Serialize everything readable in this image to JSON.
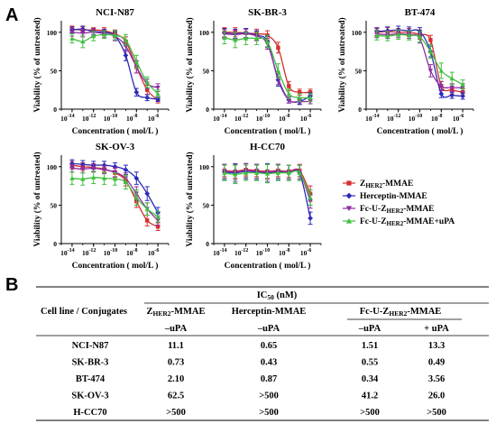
{
  "panels": {
    "a": "A",
    "b": "B"
  },
  "colors": {
    "zher2": "#d62f2f",
    "herceptin": "#2a2ab8",
    "fcu": "#8e2da0",
    "fcu_upa": "#3fbf3f"
  },
  "legend": [
    {
      "prefix": "Z",
      "sub": "HER2",
      "suffix": "-MMAE",
      "color": "#d62f2f",
      "marker": "square"
    },
    {
      "prefix": "Herceptin-MMAE",
      "sub": "",
      "suffix": "",
      "color": "#2a2ab8",
      "marker": "diamond"
    },
    {
      "prefix": "Fc-U-Z",
      "sub": "HER2",
      "suffix": "-MMAE",
      "color": "#8e2da0",
      "marker": "triangle-down"
    },
    {
      "prefix": "Fc-U-Z",
      "sub": "HER2",
      "suffix": "-MMAE+uPA",
      "color": "#3fbf3f",
      "marker": "triangle-up"
    }
  ],
  "chart_data": [
    {
      "type": "line",
      "title": "NCI-N87",
      "xlabel": "Concentration ( mol/L )",
      "ylabel": "Viability (% of untreated)",
      "x_scale": "log",
      "xlim": [
        1e-15,
        1e-05
      ],
      "ylim": [
        0,
        115
      ],
      "x_ticks": [
        -14,
        -12,
        -10,
        -8,
        -6
      ],
      "y_ticks": [
        0,
        50,
        100
      ],
      "x": [
        1e-14,
        1e-13,
        1e-12,
        1e-11,
        1e-10,
        1e-09,
        1e-08,
        1e-07,
        1e-06
      ],
      "series": [
        {
          "name": "ZHER2-MMAE",
          "values": [
            104,
            103,
            103,
            102,
            98,
            88,
            55,
            25,
            12
          ],
          "errors": [
            4,
            4,
            3,
            4,
            5,
            6,
            8,
            6,
            4
          ]
        },
        {
          "name": "Herceptin-MMAE",
          "values": [
            103,
            104,
            101,
            100,
            95,
            70,
            22,
            15,
            13
          ],
          "errors": [
            4,
            4,
            4,
            4,
            5,
            7,
            5,
            4,
            3
          ]
        },
        {
          "name": "Fc-U-ZHER2-MMAE",
          "values": [
            100,
            99,
            100,
            98,
            95,
            82,
            55,
            33,
            28
          ],
          "errors": [
            5,
            5,
            5,
            5,
            6,
            7,
            8,
            6,
            5
          ]
        },
        {
          "name": "Fc-U-ZHER2-MMAE+uPA",
          "values": [
            92,
            88,
            95,
            97,
            96,
            90,
            62,
            35,
            20
          ],
          "errors": [
            6,
            8,
            6,
            5,
            6,
            7,
            8,
            7,
            5
          ]
        }
      ]
    },
    {
      "type": "line",
      "title": "SK-BR-3",
      "xlabel": "Concentration ( mol/L )",
      "ylabel": "Viability (% of untreated)",
      "x_scale": "log",
      "xlim": [
        1e-15,
        1e-05
      ],
      "ylim": [
        0,
        115
      ],
      "x_ticks": [
        -14,
        -12,
        -10,
        -8,
        -6
      ],
      "y_ticks": [
        0,
        50,
        100
      ],
      "x": [
        1e-14,
        1e-13,
        1e-12,
        1e-11,
        1e-10,
        1e-09,
        1e-08,
        1e-07,
        1e-06
      ],
      "series": [
        {
          "name": "ZHER2-MMAE",
          "values": [
            100,
            100,
            99,
            98,
            96,
            80,
            30,
            22,
            22
          ],
          "errors": [
            6,
            6,
            6,
            6,
            6,
            7,
            6,
            4,
            4
          ]
        },
        {
          "name": "Herceptin-MMAE",
          "values": [
            99,
            98,
            99,
            96,
            88,
            38,
            12,
            10,
            17
          ],
          "errors": [
            6,
            6,
            6,
            6,
            7,
            8,
            4,
            4,
            4
          ]
        },
        {
          "name": "Fc-U-ZHER2-MMAE",
          "values": [
            98,
            97,
            98,
            95,
            85,
            40,
            12,
            10,
            10
          ],
          "errors": [
            6,
            6,
            6,
            6,
            7,
            8,
            4,
            3,
            3
          ]
        },
        {
          "name": "Fc-U-ZHER2-MMAE+uPA",
          "values": [
            93,
            90,
            92,
            92,
            88,
            50,
            20,
            15,
            15
          ],
          "errors": [
            8,
            10,
            8,
            8,
            8,
            9,
            6,
            5,
            5
          ]
        }
      ]
    },
    {
      "type": "line",
      "title": "BT-474",
      "xlabel": "Concentration ( mol/L )",
      "ylabel": "Viability (% of untreated)",
      "x_scale": "log",
      "xlim": [
        1e-15,
        1e-05
      ],
      "ylim": [
        0,
        115
      ],
      "x_ticks": [
        -14,
        -12,
        -10,
        -8,
        -6
      ],
      "y_ticks": [
        0,
        50,
        100
      ],
      "x": [
        1e-14,
        1e-13,
        1e-12,
        1e-11,
        1e-10,
        1e-09,
        1e-08,
        1e-07,
        1e-06
      ],
      "series": [
        {
          "name": "ZHER2-MMAE",
          "values": [
            100,
            101,
            100,
            100,
            97,
            90,
            30,
            25,
            22
          ],
          "errors": [
            5,
            5,
            5,
            5,
            6,
            6,
            6,
            5,
            5
          ]
        },
        {
          "name": "Herceptin-MMAE",
          "values": [
            101,
            102,
            103,
            102,
            101,
            75,
            20,
            18,
            17
          ],
          "errors": [
            5,
            5,
            5,
            5,
            5,
            7,
            5,
            4,
            4
          ]
        },
        {
          "name": "Fc-U-ZHER2-MMAE",
          "values": [
            98,
            97,
            98,
            97,
            92,
            50,
            30,
            28,
            28
          ],
          "errors": [
            5,
            5,
            5,
            5,
            6,
            8,
            6,
            5,
            5
          ]
        },
        {
          "name": "Fc-U-ZHER2-MMAE+uPA",
          "values": [
            96,
            95,
            97,
            96,
            94,
            75,
            50,
            40,
            32
          ],
          "errors": [
            6,
            6,
            6,
            6,
            7,
            9,
            10,
            8,
            6
          ]
        }
      ]
    },
    {
      "type": "line",
      "title": "SK-OV-3",
      "xlabel": "Concentration ( mol/L )",
      "ylabel": "Viability (% of untreated)",
      "x_scale": "log",
      "xlim": [
        1e-15,
        1e-05
      ],
      "ylim": [
        0,
        115
      ],
      "x_ticks": [
        -14,
        -12,
        -10,
        -8,
        -6
      ],
      "y_ticks": [
        0,
        50,
        100
      ],
      "x": [
        1e-14,
        1e-13,
        1e-12,
        1e-11,
        1e-10,
        1e-09,
        1e-08,
        1e-07,
        1e-06
      ],
      "series": [
        {
          "name": "ZHER2-MMAE",
          "values": [
            102,
            100,
            99,
            97,
            92,
            82,
            55,
            30,
            22
          ],
          "errors": [
            5,
            5,
            5,
            5,
            6,
            7,
            8,
            7,
            5
          ]
        },
        {
          "name": "Herceptin-MMAE",
          "values": [
            104,
            103,
            102,
            102,
            100,
            96,
            85,
            65,
            40
          ],
          "errors": [
            5,
            5,
            5,
            5,
            5,
            6,
            8,
            9,
            7
          ]
        },
        {
          "name": "Fc-U-ZHER2-MMAE",
          "values": [
            98,
            97,
            98,
            96,
            93,
            85,
            65,
            45,
            30
          ],
          "errors": [
            5,
            5,
            5,
            5,
            6,
            7,
            9,
            8,
            6
          ]
        },
        {
          "name": "Fc-U-ZHER2-MMAE+uPA",
          "values": [
            85,
            84,
            86,
            85,
            84,
            80,
            60,
            45,
            35
          ],
          "errors": [
            8,
            8,
            8,
            8,
            8,
            9,
            10,
            8,
            7
          ]
        }
      ]
    },
    {
      "type": "line",
      "title": "H-CC70",
      "xlabel": "Concentration ( mol/L )",
      "ylabel": "Viability (% of untreated)",
      "x_scale": "log",
      "xlim": [
        1e-15,
        1e-05
      ],
      "ylim": [
        0,
        115
      ],
      "x_ticks": [
        -14,
        -12,
        -10,
        -8,
        -6
      ],
      "y_ticks": [
        0,
        50,
        100
      ],
      "x": [
        1e-14,
        1e-13,
        1e-12,
        1e-11,
        1e-10,
        1e-09,
        1e-08,
        1e-07,
        1e-06
      ],
      "series": [
        {
          "name": "ZHER2-MMAE",
          "values": [
            95,
            94,
            96,
            95,
            94,
            95,
            94,
            95,
            65
          ],
          "errors": [
            8,
            9,
            8,
            8,
            9,
            8,
            8,
            8,
            10
          ]
        },
        {
          "name": "Herceptin-MMAE",
          "values": [
            93,
            92,
            94,
            93,
            92,
            93,
            92,
            92,
            33
          ],
          "errors": [
            10,
            12,
            10,
            10,
            12,
            10,
            10,
            10,
            8
          ]
        },
        {
          "name": "Fc-U-ZHER2-MMAE",
          "values": [
            94,
            93,
            95,
            94,
            93,
            94,
            93,
            93,
            55
          ],
          "errors": [
            9,
            10,
            9,
            9,
            10,
            9,
            9,
            9,
            9
          ]
        },
        {
          "name": "Fc-U-ZHER2-MMAE+uPA",
          "values": [
            92,
            90,
            92,
            92,
            91,
            92,
            92,
            92,
            60
          ],
          "errors": [
            10,
            12,
            10,
            10,
            12,
            10,
            10,
            10,
            10
          ]
        }
      ]
    }
  ],
  "table": {
    "ic50": {
      "main": "IC",
      "sub": "50",
      "rest": " (nM)"
    },
    "row_header": "Cell line / Conjugates",
    "col1": {
      "prefix": "Z",
      "sub": "HER2",
      "suffix": "-MMAE"
    },
    "col2": "Herceptin-MMAE",
    "col3": {
      "prefix": "Fc-U-Z",
      "sub": "HER2",
      "suffix": "-MMAE"
    },
    "sub_headers": [
      "–uPA",
      "–uPA",
      "–uPA",
      "+ uPA"
    ],
    "rows": [
      {
        "cell": "NCI-N87",
        "values": [
          "11.1",
          "0.65",
          "1.51",
          "13.3"
        ]
      },
      {
        "cell": "SK-BR-3",
        "values": [
          "0.73",
          "0.43",
          "0.55",
          "0.49"
        ]
      },
      {
        "cell": "BT-474",
        "values": [
          "2.10",
          "0.87",
          "0.34",
          "3.56"
        ]
      },
      {
        "cell": "SK-OV-3",
        "values": [
          "62.5",
          ">500",
          "41.2",
          "26.0"
        ]
      },
      {
        "cell": "H-CC70",
        "values": [
          ">500",
          ">500",
          ">500",
          ">500"
        ]
      }
    ]
  }
}
